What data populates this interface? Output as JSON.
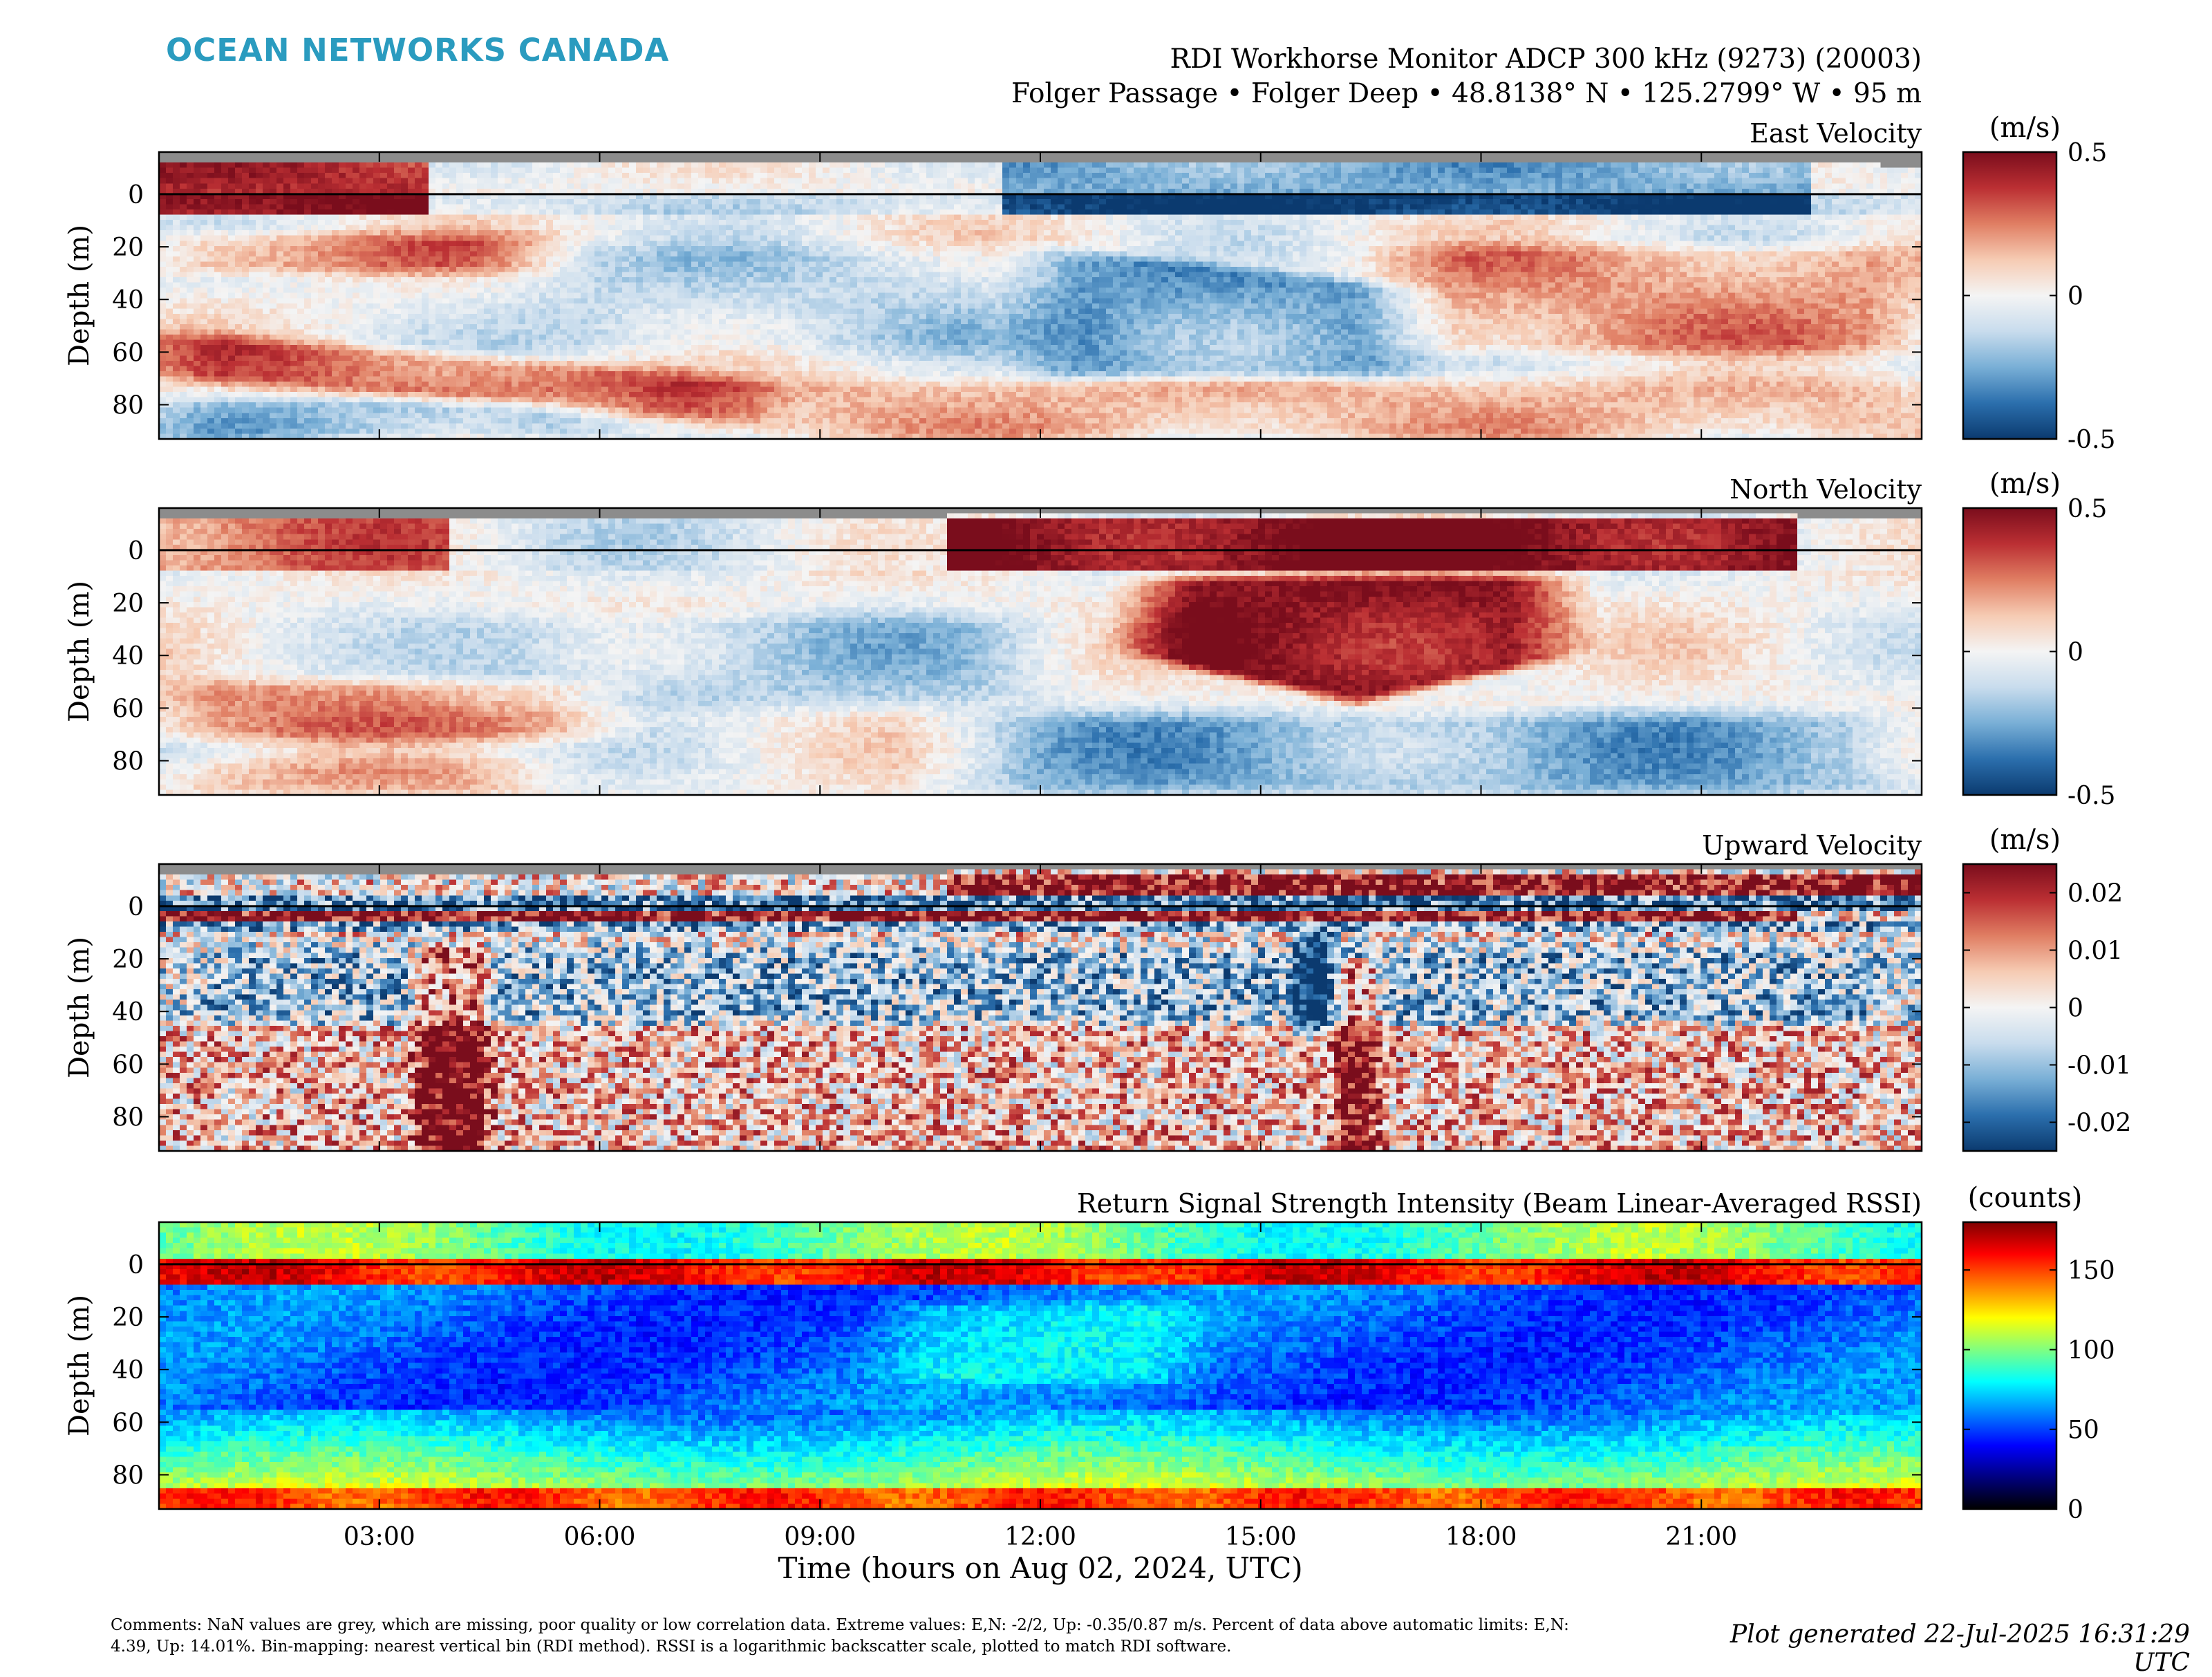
{
  "header": {
    "brand": "OCEAN NETWORKS CANADA",
    "title_line1": "RDI Workhorse Monitor ADCP 300 kHz (9273) (20003)",
    "title_line2": "Folger Passage • Folger Deep • 48.8138° N • 125.2799° W • 95 m"
  },
  "footer": {
    "comments": "Comments: NaN values are grey, which are missing, poor quality or low correlation data. Extreme values: E,N: -2/2, Up: -0.35/0.87 m/s. Percent of data above automatic limits: E,N: 4.39, Up: 14.01%. Bin-mapping: nearest vertical bin (RDI method). RSSI is a logarithmic backscatter scale, plotted to match RDI software.",
    "generated": "Plot generated 22-Jul-2025 16:31:29 UTC"
  },
  "colors": {
    "nan_grey": "#8c8c8c",
    "brand_teal": "#2a9bbf",
    "diverging": [
      "#0b3a6f",
      "#2b6fad",
      "#79afd6",
      "#c8dced",
      "#f4f4f4",
      "#f6cbb3",
      "#e07e63",
      "#bb2f33",
      "#7a0d1c"
    ],
    "jet": [
      "#000000",
      "#00007f",
      "#0000ff",
      "#0080ff",
      "#00ffff",
      "#80ff80",
      "#ffff00",
      "#ff8000",
      "#ff0000",
      "#800000"
    ]
  },
  "chart_data": [
    {
      "type": "heatmap",
      "title": "East Velocity",
      "xlabel": "",
      "ylabel": "Depth (m)",
      "x_unit": "hours on Aug 02, 2024, UTC",
      "xlim": [
        0,
        24
      ],
      "x_ticks": [
        "03:00",
        "06:00",
        "09:00",
        "12:00",
        "15:00",
        "18:00",
        "21:00"
      ],
      "ylim": [
        -16,
        93
      ],
      "y_reversed": true,
      "y_ticks": [
        0,
        20,
        40,
        60,
        80
      ],
      "colorbar": {
        "unit": "(m/s)",
        "range": [
          -0.5,
          0.5
        ],
        "ticks": [
          0.5,
          0,
          -0.5
        ],
        "colormap": "balance"
      },
      "features": [
        {
          "depth_range": [
            55,
            75
          ],
          "time_range": [
            0,
            8
          ],
          "value": 0.25,
          "note": "red layer descending"
        },
        {
          "depth_range": [
            0,
            8
          ],
          "time_range": [
            0,
            3.7
          ],
          "value": 0.5,
          "note": "strong eastward near surface"
        },
        {
          "depth_range": [
            0,
            8
          ],
          "time_range": [
            11.5,
            22.5
          ],
          "value": -0.5,
          "note": "strong westward near surface"
        },
        {
          "depth_range": [
            20,
            65
          ],
          "time_range": [
            12,
            16.5
          ],
          "value": -0.22,
          "note": "westward body"
        },
        {
          "depth_range": [
            20,
            60
          ],
          "time_range": [
            17,
            24
          ],
          "value": 0.15,
          "note": "weak eastward"
        }
      ]
    },
    {
      "type": "heatmap",
      "title": "North Velocity",
      "xlabel": "",
      "ylabel": "Depth (m)",
      "xlim": [
        0,
        24
      ],
      "x_ticks": [
        "03:00",
        "06:00",
        "09:00",
        "12:00",
        "15:00",
        "18:00",
        "21:00"
      ],
      "ylim": [
        -16,
        93
      ],
      "y_reversed": true,
      "y_ticks": [
        0,
        20,
        40,
        60,
        80
      ],
      "colorbar": {
        "unit": "(m/s)",
        "range": [
          -0.5,
          0.5
        ],
        "ticks": [
          0.5,
          0,
          -0.5
        ],
        "colormap": "balance"
      },
      "features": [
        {
          "depth_range": [
            -12,
            8
          ],
          "time_range": [
            10.7,
            22.3
          ],
          "value": 0.5,
          "note": "strong northward near surface"
        },
        {
          "depth_range": [
            10,
            58
          ],
          "time_range": [
            13.5,
            19
          ],
          "value": 0.42,
          "note": "northward core"
        },
        {
          "depth_range": [
            50,
            75
          ],
          "time_range": [
            0,
            6
          ],
          "value": 0.2,
          "note": "weak northward layer"
        },
        {
          "depth_range": [
            60,
            92
          ],
          "time_range": [
            11,
            24
          ],
          "value": -0.22,
          "note": "southward bottom"
        }
      ]
    },
    {
      "type": "heatmap",
      "title": "Upward Velocity",
      "xlabel": "",
      "ylabel": "Depth (m)",
      "xlim": [
        0,
        24
      ],
      "x_ticks": [
        "03:00",
        "06:00",
        "09:00",
        "12:00",
        "15:00",
        "18:00",
        "21:00"
      ],
      "ylim": [
        -16,
        93
      ],
      "y_reversed": true,
      "y_ticks": [
        0,
        20,
        40,
        60,
        80
      ],
      "colorbar": {
        "unit": "(m/s)",
        "range": [
          -0.025,
          0.025
        ],
        "ticks": [
          0.02,
          0.01,
          0,
          -0.01,
          -0.02
        ],
        "tick_labels": [
          "0.02",
          "0.01",
          "0",
          "-0.01",
          "-0.02"
        ],
        "colormap": "balance"
      },
      "features": [
        {
          "depth_range": [
            -12,
            -4
          ],
          "time_range": [
            10.7,
            24
          ],
          "value": 0.025,
          "note": "surface positive"
        },
        {
          "depth_range": [
            1,
            5
          ],
          "time_range": [
            0,
            22.3
          ],
          "value": 0.025,
          "note": "near-surface positive stripe"
        },
        {
          "depth_range": [
            15,
            45
          ],
          "time_range": [
            0,
            24
          ],
          "value": -0.015,
          "note": "downward layer"
        },
        {
          "depth_range": [
            50,
            92
          ],
          "time_range": [
            0,
            24
          ],
          "value": 0.006,
          "note": "noisy positive"
        }
      ]
    },
    {
      "type": "heatmap",
      "title": "Return Signal Strength Intensity (Beam Linear-Averaged RSSI)",
      "xlabel": "Time (hours on Aug 02, 2024, UTC)",
      "ylabel": "Depth (m)",
      "xlim": [
        0,
        24
      ],
      "x_ticks": [
        "03:00",
        "06:00",
        "09:00",
        "12:00",
        "15:00",
        "18:00",
        "21:00"
      ],
      "ylim": [
        -16,
        93
      ],
      "y_reversed": true,
      "y_ticks": [
        0,
        20,
        40,
        60,
        80
      ],
      "colorbar": {
        "unit": "(counts)",
        "range": [
          0,
          180
        ],
        "ticks": [
          150,
          100,
          50,
          0
        ],
        "colormap": "jet"
      },
      "features": [
        {
          "depth_range": [
            -16,
            -3
          ],
          "time_range": [
            0,
            24
          ],
          "value": 95,
          "note": "surface water"
        },
        {
          "depth_range": [
            0,
            8
          ],
          "time_range": [
            0,
            24
          ],
          "value": 160,
          "note": "surface reflection"
        },
        {
          "depth_range": [
            10,
            55
          ],
          "time_range": [
            0,
            24
          ],
          "value": 55,
          "note": "low backscatter interior"
        },
        {
          "depth_range": [
            65,
            85
          ],
          "time_range": [
            0,
            24
          ],
          "value": 105,
          "note": "near-bottom rise"
        },
        {
          "depth_range": [
            85,
            93
          ],
          "time_range": [
            0,
            24
          ],
          "value": 150,
          "note": "bottom"
        }
      ]
    }
  ]
}
